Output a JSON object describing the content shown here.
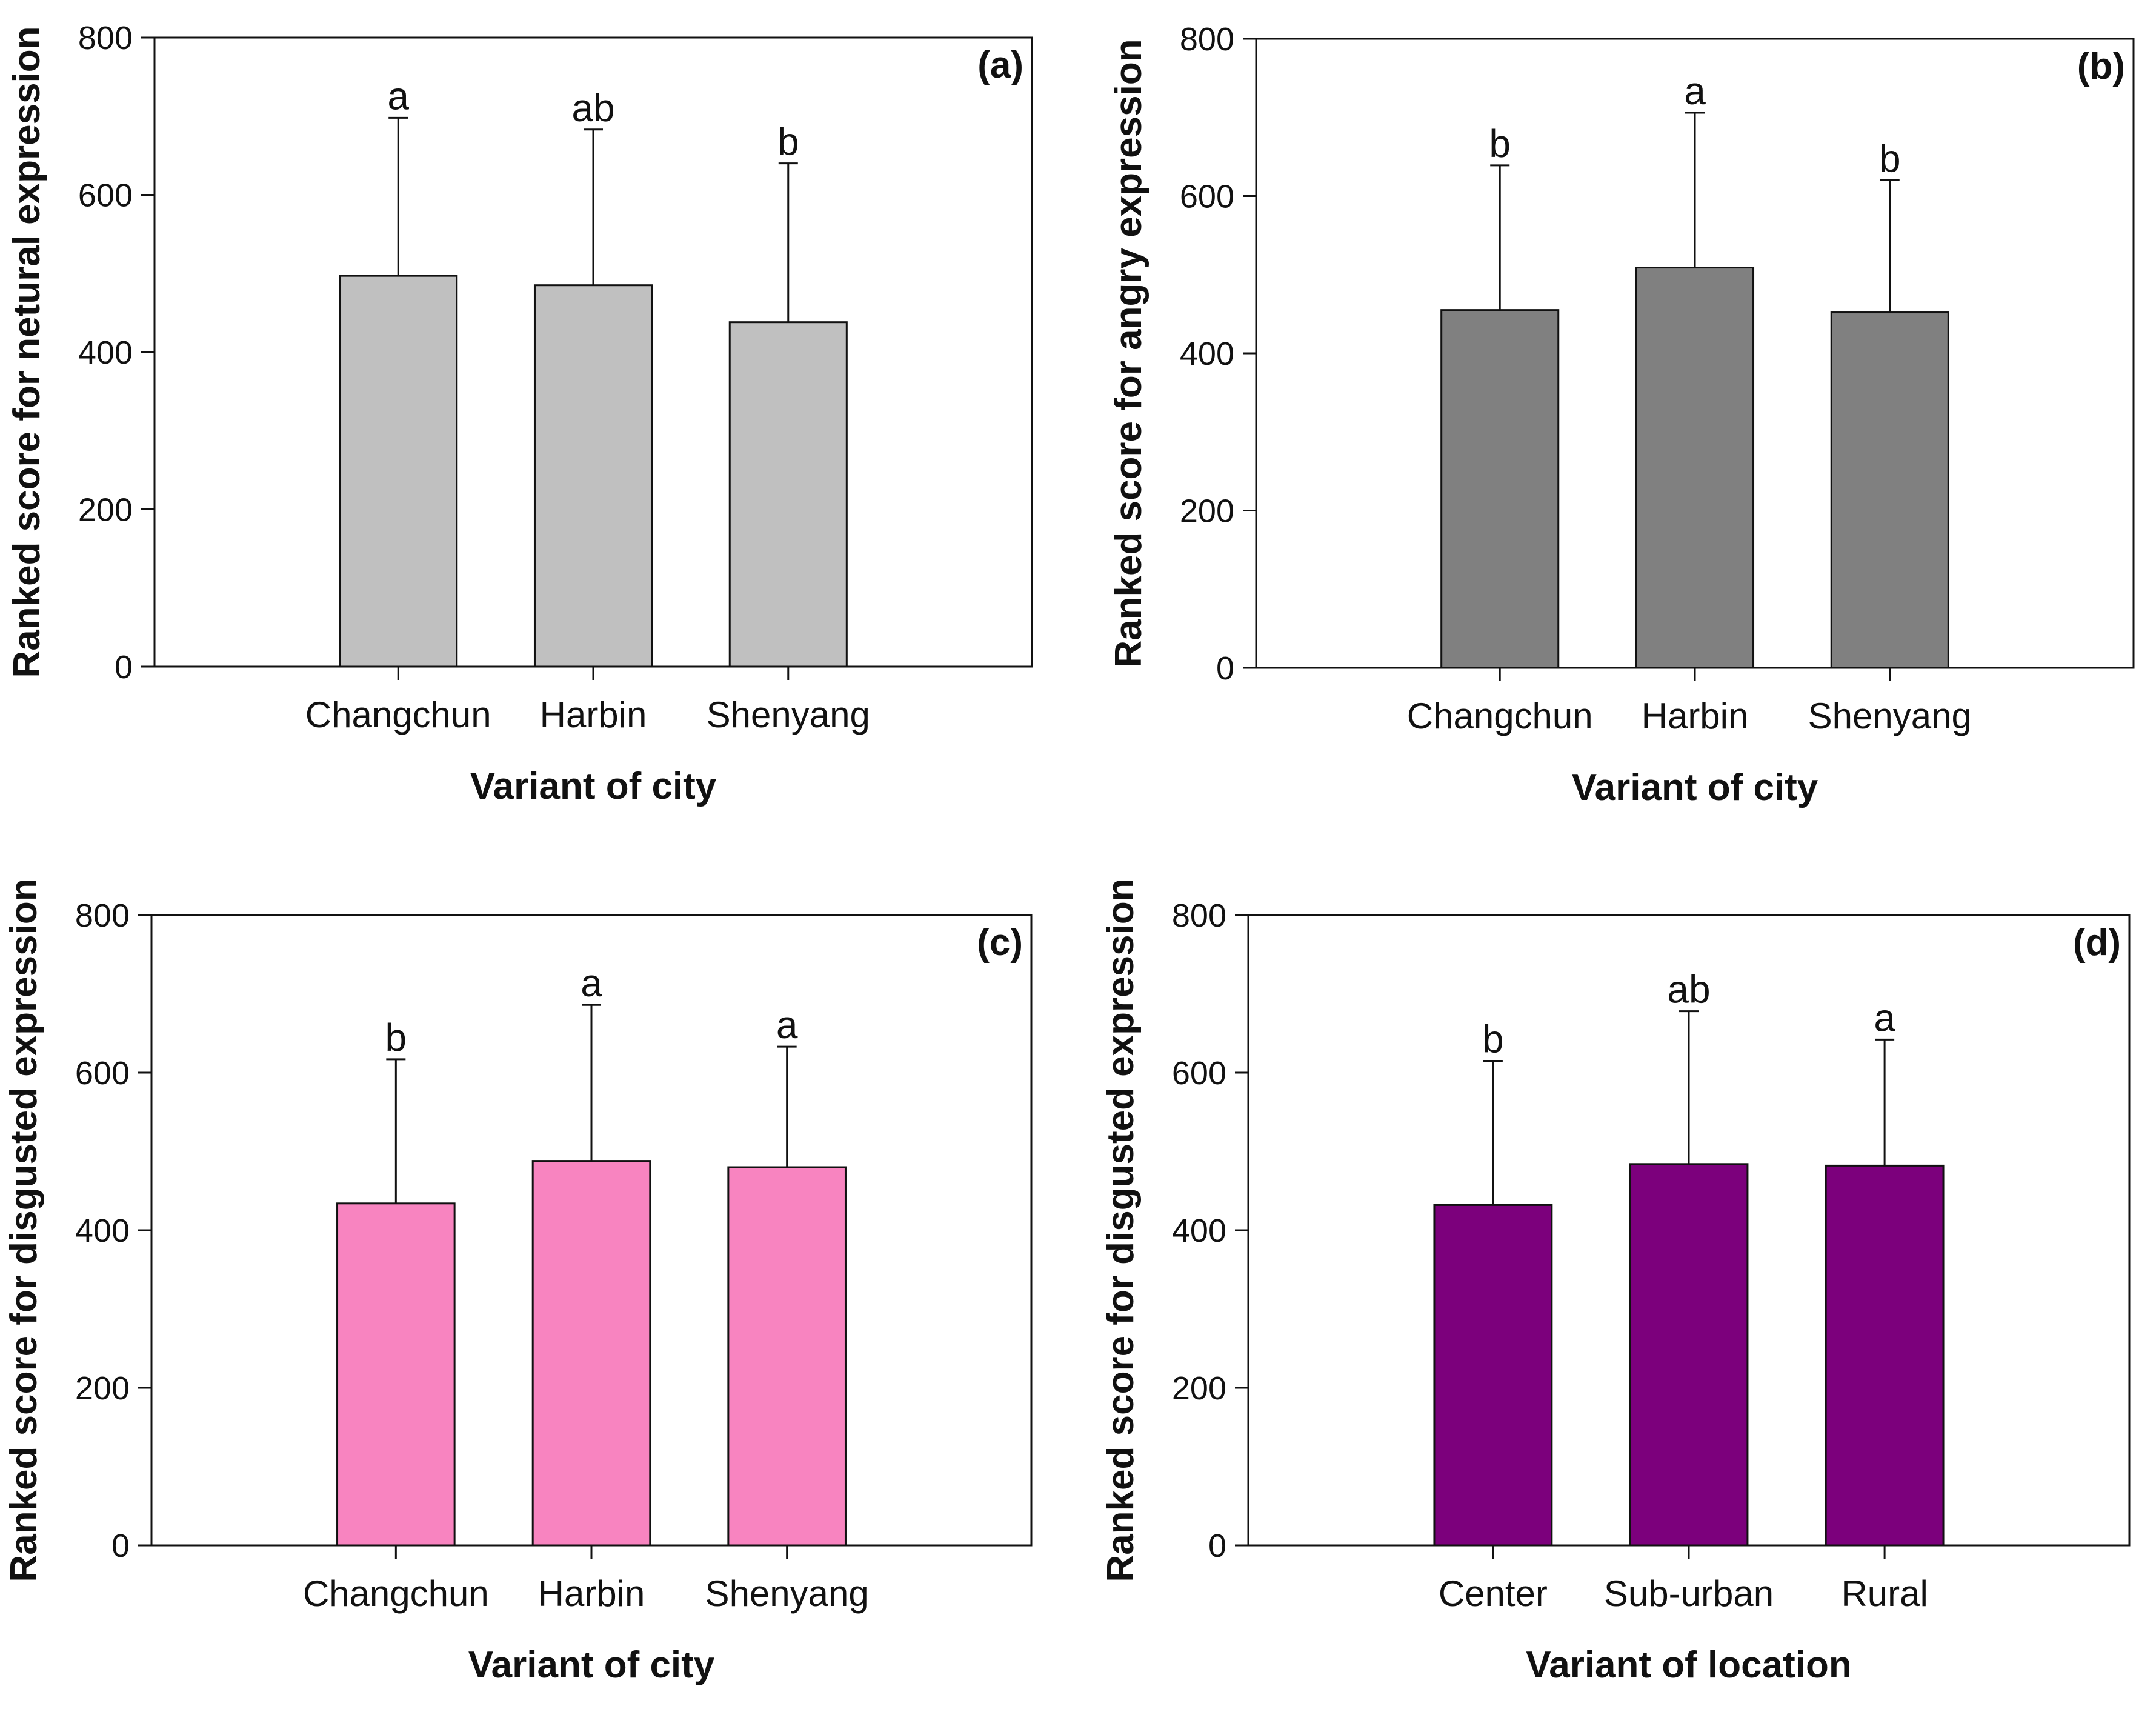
{
  "chart_data": [
    {
      "type": "bar",
      "panel": "(a)",
      "categories": [
        "Changchun",
        "Harbin",
        "Shenyang"
      ],
      "values": [
        497,
        485,
        438
      ],
      "error_upper": [
        698,
        683,
        640
      ],
      "significance": [
        "a",
        "ab",
        "b"
      ],
      "xlabel": "Variant of city",
      "ylabel": "Ranked score for netural expression",
      "ylim": [
        0,
        800
      ],
      "yticks": [
        "0",
        "200",
        "400",
        "600",
        "800"
      ],
      "color": "#c0c0c0",
      "grid": false
    },
    {
      "type": "bar",
      "panel": "(b)",
      "categories": [
        "Changchun",
        "Harbin",
        "Shenyang"
      ],
      "values": [
        455,
        509,
        452
      ],
      "error_upper": [
        639,
        706,
        620
      ],
      "significance": [
        "b",
        "a",
        "b"
      ],
      "xlabel": "Variant of city",
      "ylabel": "Ranked score for angry expression",
      "ylim": [
        0,
        800
      ],
      "yticks": [
        "0",
        "200",
        "400",
        "600",
        "800"
      ],
      "color": "#808080",
      "grid": false
    },
    {
      "type": "bar",
      "panel": "(c)",
      "categories": [
        "Changchun",
        "Harbin",
        "Shenyang"
      ],
      "values": [
        434,
        488,
        480
      ],
      "error_upper": [
        617,
        686,
        633
      ],
      "significance": [
        "b",
        "a",
        "a"
      ],
      "xlabel": "Variant of city",
      "ylabel": "Ranked score for disgusted expression",
      "ylim": [
        0,
        800
      ],
      "yticks": [
        "0",
        "200",
        "400",
        "600",
        "800"
      ],
      "color": "#f884c0",
      "grid": false
    },
    {
      "type": "bar",
      "panel": "(d)",
      "categories": [
        "Center",
        "Sub-urban",
        "Rural"
      ],
      "values": [
        432,
        484,
        482
      ],
      "error_upper": [
        615,
        678,
        642
      ],
      "significance": [
        "b",
        "ab",
        "a"
      ],
      "xlabel": "Variant of location",
      "ylabel": "Ranked score for disgusted expression",
      "ylim": [
        0,
        800
      ],
      "yticks": [
        "0",
        "200",
        "400",
        "600",
        "800"
      ],
      "color": "#7c007c",
      "grid": false
    }
  ]
}
